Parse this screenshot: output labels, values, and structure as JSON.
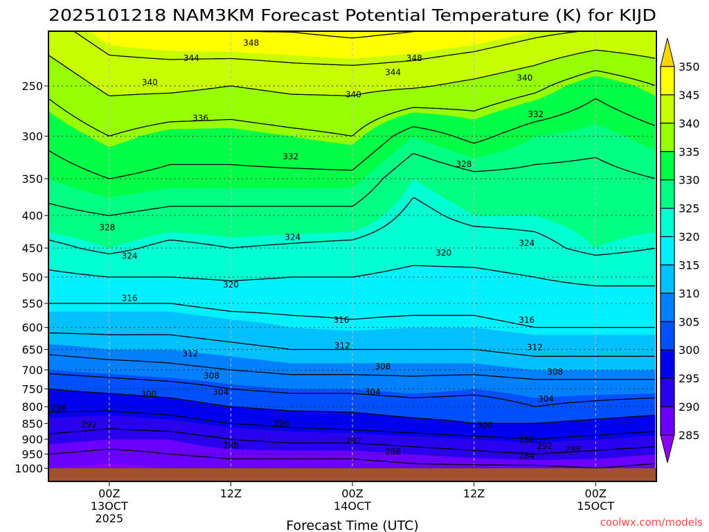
{
  "chart_data": {
    "type": "heatmap",
    "subtype": "filled-contour time-height cross section",
    "title": "2025101218 NAM3KM Forecast Potential Temperature (K) for KIJD",
    "xlabel": "Forecast Time (UTC)",
    "ylabel": "",
    "x_units": "forecast hour",
    "xlim": [
      0,
      60
    ],
    "ylim_hPa": [
      1000,
      205
    ],
    "y_scale": "log",
    "x_ticks": [
      {
        "hour": 6,
        "lines": [
          "00Z",
          "13OCT",
          "2025"
        ]
      },
      {
        "hour": 18,
        "lines": [
          "12Z"
        ]
      },
      {
        "hour": 30,
        "lines": [
          "00Z",
          "14OCT"
        ]
      },
      {
        "hour": 42,
        "lines": [
          "12Z"
        ]
      },
      {
        "hour": 54,
        "lines": [
          "00Z",
          "15OCT"
        ]
      }
    ],
    "y_ticks": [
      250,
      300,
      350,
      400,
      450,
      500,
      550,
      600,
      650,
      700,
      750,
      800,
      850,
      900,
      950,
      1000
    ],
    "grid": true,
    "times": [
      0,
      6,
      12,
      18,
      24,
      30,
      36,
      42,
      48,
      54,
      60
    ],
    "pressure_levels": [
      1000,
      950,
      900,
      850,
      800,
      750,
      700,
      650,
      600,
      550,
      500,
      450,
      400,
      350,
      300,
      250,
      200
    ],
    "theta_K": [
      [
        285,
        288,
        291,
        294,
        297,
        300,
        305,
        309,
        313,
        316,
        319,
        323,
        327,
        330,
        333,
        337,
        343
      ],
      [
        284,
        287,
        290,
        293,
        297,
        301,
        306,
        310,
        313,
        316,
        320,
        325,
        328,
        332,
        336,
        341,
        347
      ],
      [
        285,
        288,
        290,
        294,
        298,
        302,
        307,
        310,
        313,
        316,
        320,
        323,
        327,
        331,
        334,
        341,
        348
      ],
      [
        286,
        289,
        292,
        296,
        300,
        304,
        308,
        311,
        314,
        317,
        320.5,
        324,
        327,
        331,
        334,
        340,
        349
      ],
      [
        286,
        289,
        293,
        297,
        301,
        305,
        309,
        312,
        315,
        317,
        320,
        323.5,
        327,
        331,
        335,
        341,
        349
      ],
      [
        286,
        289,
        293,
        298,
        301,
        305,
        309,
        312,
        315.5,
        317,
        320,
        323,
        327,
        331,
        336,
        341,
        350
      ],
      [
        287,
        290,
        294,
        299,
        302,
        306,
        309,
        312,
        315,
        317,
        319,
        321.5,
        323,
        325,
        330,
        340.5,
        349
      ],
      [
        287,
        291,
        295,
        300,
        302,
        305,
        309,
        312,
        315,
        317,
        319,
        322,
        325,
        327,
        333,
        339,
        348
      ],
      [
        287,
        292,
        296,
        300,
        304,
        306,
        310,
        313,
        316,
        318,
        320,
        323,
        325,
        327,
        330,
        337,
        346
      ],
      [
        288,
        291,
        295,
        299,
        303,
        306,
        310,
        313,
        316,
        318,
        321,
        325,
        326,
        327,
        329,
        333,
        345
      ],
      [
        287,
        290,
        294,
        298,
        302,
        306,
        310,
        313,
        316,
        318,
        321,
        324,
        326,
        328,
        331,
        336,
        345
      ]
    ],
    "fill_levels": [
      285,
      290,
      295,
      300,
      305,
      310,
      315,
      320,
      325,
      330,
      335,
      340,
      345,
      350
    ],
    "fill_colors": [
      "#8c00ff",
      "#6a00ff",
      "#2a00f0",
      "#0000f0",
      "#0050ff",
      "#0080ff",
      "#00c0ff",
      "#00f0ff",
      "#00ffd2",
      "#00ff82",
      "#00ff46",
      "#96ff00",
      "#c8ff00",
      "#ffff00",
      "#ffd700"
    ],
    "contour_levels": [
      284,
      288,
      292,
      296,
      300,
      304,
      308,
      312,
      316,
      320,
      324,
      328,
      332,
      336,
      340,
      344,
      348
    ],
    "contour_labels": [
      {
        "text": "348",
        "hour": 20.0,
        "hPa": 214
      },
      {
        "text": "344",
        "hour": 14.1,
        "hPa": 226
      },
      {
        "text": "348",
        "hour": 36.1,
        "hPa": 226
      },
      {
        "text": "344",
        "hour": 34.0,
        "hPa": 238
      },
      {
        "text": "340",
        "hour": 10.0,
        "hPa": 247
      },
      {
        "text": "340",
        "hour": 30.1,
        "hPa": 258
      },
      {
        "text": "340",
        "hour": 47.0,
        "hPa": 243
      },
      {
        "text": "336",
        "hour": 15.0,
        "hPa": 281
      },
      {
        "text": "332",
        "hour": 23.9,
        "hPa": 323
      },
      {
        "text": "332",
        "hour": 48.1,
        "hPa": 277
      },
      {
        "text": "328",
        "hour": 41.0,
        "hPa": 332
      },
      {
        "text": "328",
        "hour": 5.8,
        "hPa": 418
      },
      {
        "text": "324",
        "hour": 24.1,
        "hPa": 433
      },
      {
        "text": "324",
        "hour": 8.0,
        "hPa": 463
      },
      {
        "text": "324",
        "hour": 47.2,
        "hPa": 442
      },
      {
        "text": "320",
        "hour": 39.0,
        "hPa": 458
      },
      {
        "text": "320",
        "hour": 18.0,
        "hPa": 514
      },
      {
        "text": "316",
        "hour": 8.0,
        "hPa": 540
      },
      {
        "text": "316",
        "hour": 28.9,
        "hPa": 584
      },
      {
        "text": "316",
        "hour": 47.2,
        "hPa": 584
      },
      {
        "text": "312",
        "hour": 14.0,
        "hPa": 660
      },
      {
        "text": "312",
        "hour": 29.0,
        "hPa": 641
      },
      {
        "text": "312",
        "hour": 48.0,
        "hPa": 645
      },
      {
        "text": "308",
        "hour": 16.1,
        "hPa": 715
      },
      {
        "text": "308",
        "hour": 33.0,
        "hPa": 691
      },
      {
        "text": "308",
        "hour": 50.0,
        "hPa": 705
      },
      {
        "text": "304",
        "hour": 17.0,
        "hPa": 759
      },
      {
        "text": "304",
        "hour": 32.0,
        "hPa": 759
      },
      {
        "text": "304",
        "hour": 49.1,
        "hPa": 778
      },
      {
        "text": "300",
        "hour": 9.9,
        "hPa": 764
      },
      {
        "text": "300",
        "hour": 43.1,
        "hPa": 856
      },
      {
        "text": "296",
        "hour": 1.0,
        "hPa": 804
      },
      {
        "text": "296",
        "hour": 23.0,
        "hPa": 849
      },
      {
        "text": "292",
        "hour": 4.0,
        "hPa": 854
      },
      {
        "text": "292",
        "hour": 30.1,
        "hPa": 905
      },
      {
        "text": "288",
        "hour": 47.2,
        "hPa": 902
      },
      {
        "text": "292",
        "hour": 47.2,
        "hPa": 923
      },
      {
        "text": "288",
        "hour": 18.0,
        "hPa": 920
      },
      {
        "text": "288",
        "hour": 34.0,
        "hPa": 941
      },
      {
        "text": "288",
        "hour": 50.0,
        "hPa": 935
      },
      {
        "text": "284",
        "hour": 47.2,
        "hPa": 956
      }
    ],
    "colorbar_labels": [
      "350",
      "345",
      "340",
      "335",
      "330",
      "325",
      "320",
      "315",
      "310",
      "305",
      "300",
      "295",
      "290",
      "285"
    ],
    "ground_color": "#a0522d"
  },
  "watermark": "coolwx.com/models"
}
